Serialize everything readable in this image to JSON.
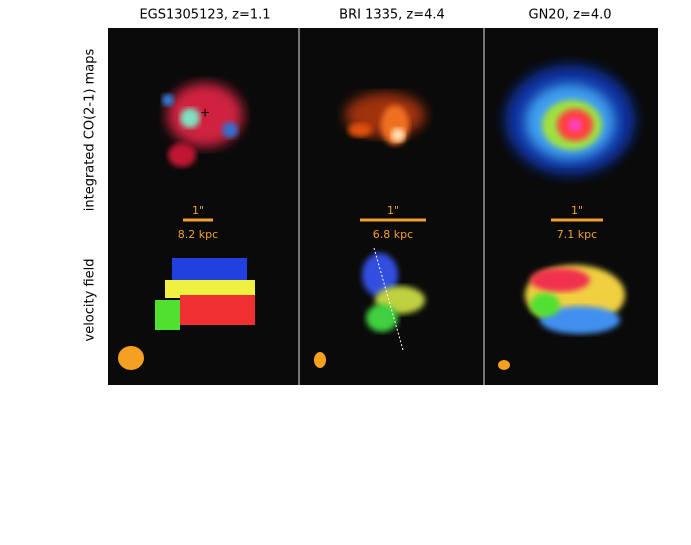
{
  "column_titles": [
    "EGS1305123, z=1.1",
    "BRI 1335, z=4.4",
    "GN20, z=4.0"
  ],
  "row_labels": [
    "integrated CO(2-1) maps",
    "velocity field"
  ],
  "scale_bars": [
    {
      "angle": "1\"",
      "distance": "8.2 kpc"
    },
    {
      "angle": "1\"",
      "distance": "6.8 kpc"
    },
    {
      "angle": "1\"",
      "distance": "7.1 kpc"
    }
  ]
}
